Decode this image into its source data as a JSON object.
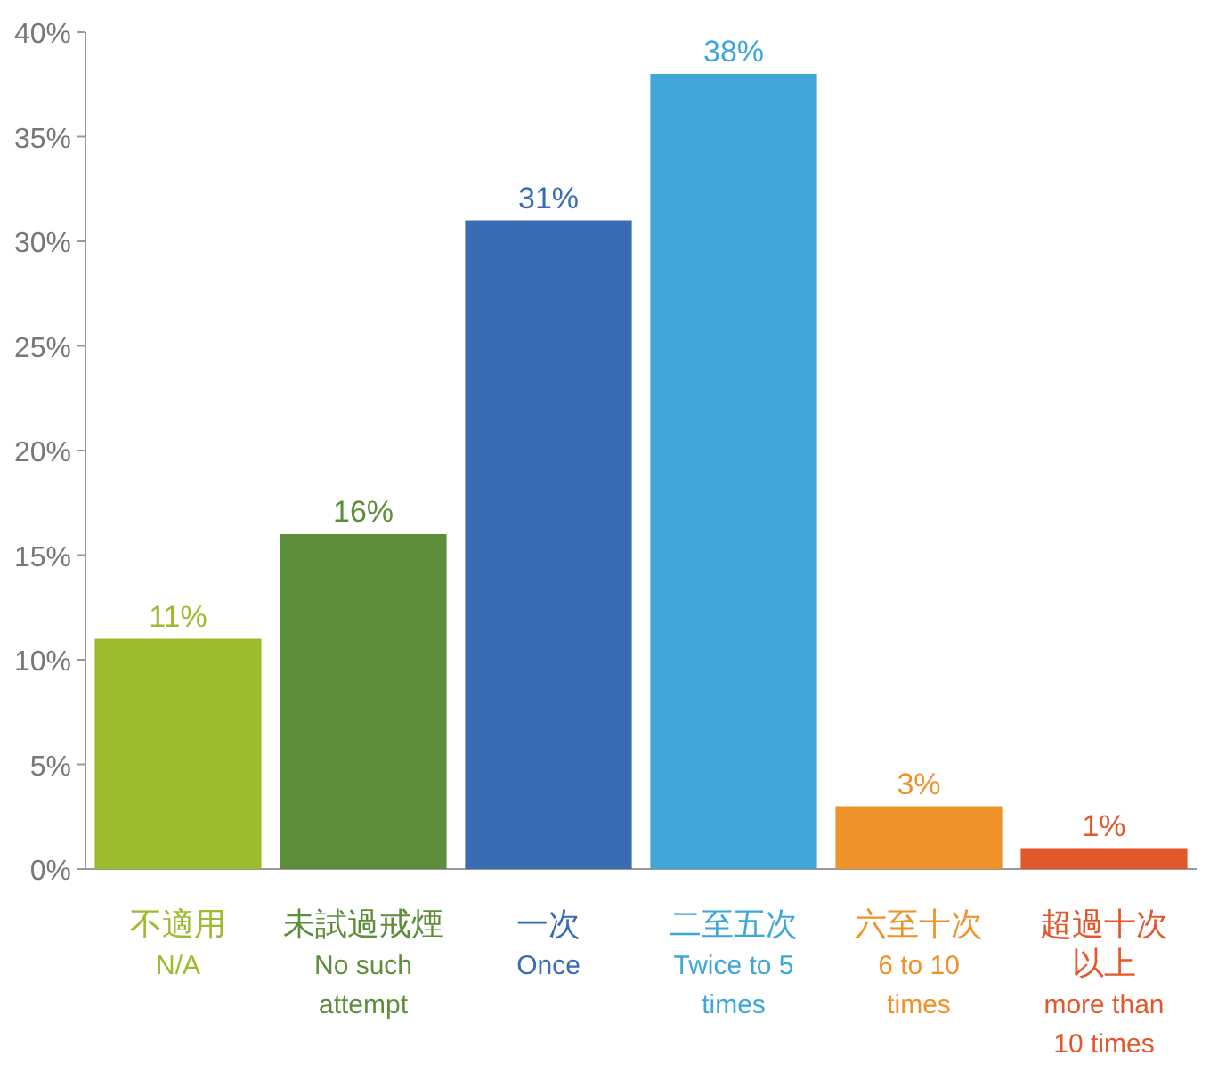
{
  "chart_data": {
    "type": "bar",
    "categories": [
      "不適用\nN/A",
      "未試過戒煙\nNo such\nattempt",
      "一次\nOnce",
      "二至五次\nTwice to 5\ntimes",
      "六至十次\n6 to 10\ntimes",
      "超過十次以上\nmore than\n10 times"
    ],
    "values": [
      11,
      16,
      31,
      38,
      3,
      1
    ],
    "colors": [
      "#9cbb2e",
      "#5d8e3b",
      "#3a6cb4",
      "#3fa7d8",
      "#f0922a",
      "#e2572b"
    ],
    "ylim": [
      0,
      40
    ],
    "yticks": [
      {
        "value": 0,
        "label": "0%"
      },
      {
        "value": 5,
        "label": "5%"
      },
      {
        "value": 10,
        "label": "10%"
      },
      {
        "value": 15,
        "label": "15%"
      },
      {
        "value": 20,
        "label": "20%"
      },
      {
        "value": 25,
        "label": "25%"
      },
      {
        "value": 30,
        "label": "30%"
      },
      {
        "value": 35,
        "label": "35%"
      },
      {
        "value": 40,
        "label": "40%"
      }
    ],
    "value_labels": [
      "11%",
      "16%",
      "31%",
      "38%",
      "3%",
      "1%"
    ],
    "grid": false
  }
}
